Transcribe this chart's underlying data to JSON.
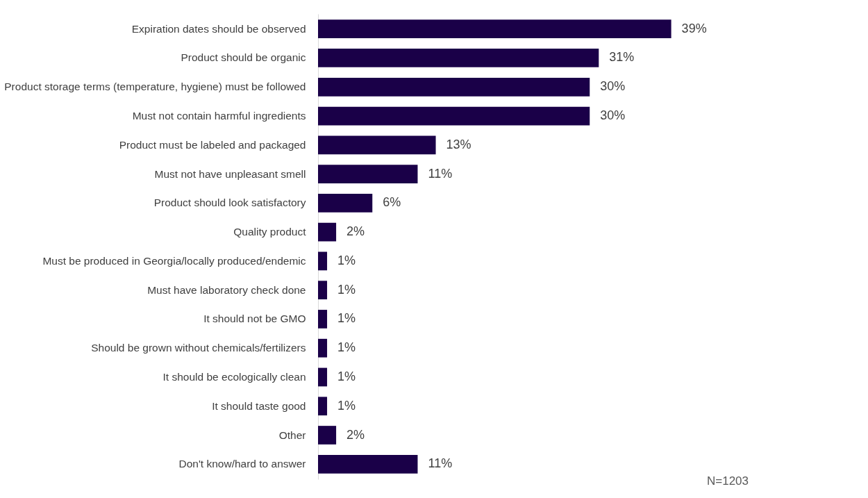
{
  "chart_data": {
    "type": "bar",
    "orientation": "horizontal",
    "categories": [
      "Expiration dates should be observed",
      "Product should be organic",
      "Product storage terms (temperature, hygiene) must be followed",
      "Must not contain harmful ingredients",
      "Product must be labeled and packaged",
      "Must not have unpleasant smell",
      "Product should look satisfactory",
      "Quality product",
      "Must be produced in Georgia/locally produced/endemic",
      "Must have laboratory check done",
      "It should not be GMO",
      "Should be grown without chemicals/fertilizers",
      "It should be ecologically clean",
      "It should taste good",
      "Other",
      "Don't know/hard to answer"
    ],
    "values": [
      39,
      31,
      30,
      30,
      13,
      11,
      6,
      2,
      1,
      1,
      1,
      1,
      1,
      1,
      2,
      11
    ],
    "value_labels": [
      "39%",
      "31%",
      "30%",
      "30%",
      "13%",
      "11%",
      "6%",
      "2%",
      "1%",
      "1%",
      "1%",
      "1%",
      "1%",
      "1%",
      "2%",
      "11%"
    ],
    "color": "#1a0048",
    "grid": false,
    "annotations": [
      "N=1203"
    ]
  }
}
